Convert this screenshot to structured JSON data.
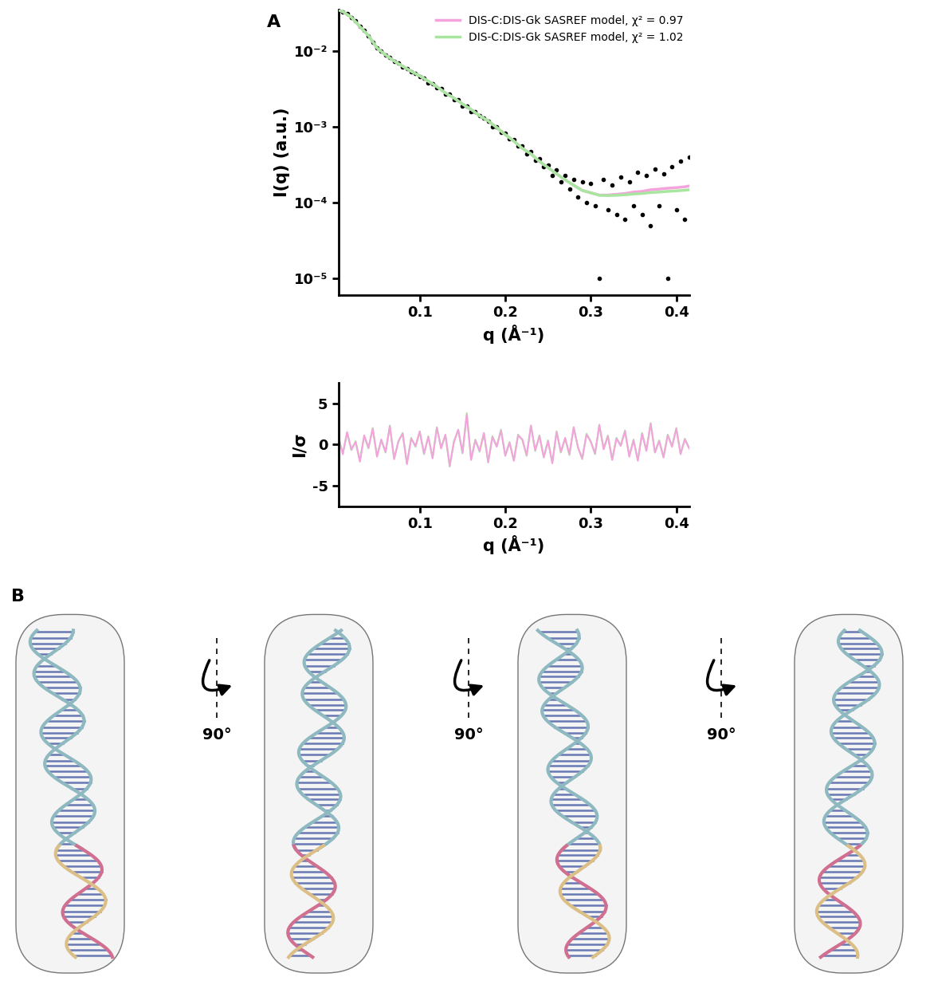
{
  "panel_labels": [
    "A",
    "B"
  ],
  "chart_data": [
    {
      "type": "scatter",
      "ylabel": "I(q) (a.u.)",
      "xlabel": "q (Å⁻¹)",
      "log": "y",
      "legend": "upper right",
      "xlim": [
        0.005,
        0.415
      ],
      "xticks": [
        0.1,
        0.2,
        0.3,
        0.4
      ],
      "ylim": [
        6e-06,
        0.035
      ],
      "yticks": [
        {
          "value": 1e-05,
          "label": "10⁻⁵"
        },
        {
          "value": 0.0001,
          "label": "10⁻⁴"
        },
        {
          "value": 0.001,
          "label": "10⁻³"
        },
        {
          "value": 0.01,
          "label": "10⁻²"
        }
      ],
      "series": [
        {
          "type": "scatter",
          "color": "#000000",
          "marker": "o",
          "x": [
            0.005,
            0.01,
            0.015,
            0.02,
            0.025,
            0.03,
            0.035,
            0.04,
            0.045,
            0.05,
            0.055,
            0.06,
            0.065,
            0.07,
            0.075,
            0.08,
            0.085,
            0.09,
            0.095,
            0.1,
            0.105,
            0.11,
            0.115,
            0.12,
            0.125,
            0.13,
            0.135,
            0.14,
            0.145,
            0.15,
            0.155,
            0.16,
            0.165,
            0.17,
            0.175,
            0.18,
            0.185,
            0.19,
            0.195,
            0.2,
            0.205,
            0.21,
            0.215,
            0.22,
            0.225,
            0.23,
            0.235,
            0.24,
            0.245,
            0.25,
            0.255,
            0.26,
            0.265,
            0.27,
            0.275,
            0.28,
            0.285,
            0.29,
            0.295,
            0.3,
            0.305,
            0.31,
            0.315,
            0.32,
            0.325,
            0.33,
            0.335,
            0.34,
            0.345,
            0.35,
            0.355,
            0.36,
            0.365,
            0.37,
            0.375,
            0.38,
            0.385,
            0.39,
            0.395,
            0.4,
            0.405,
            0.41,
            0.415
          ],
          "values": [
            0.034,
            0.033,
            0.031,
            0.028,
            0.025,
            0.021,
            0.019,
            0.016,
            0.013,
            0.011,
            0.01,
            0.0088,
            0.0083,
            0.0073,
            0.0069,
            0.0062,
            0.0059,
            0.0053,
            0.0051,
            0.0046,
            0.0044,
            0.0038,
            0.0037,
            0.0033,
            0.0032,
            0.0027,
            0.0027,
            0.0023,
            0.0023,
            0.0019,
            0.0019,
            0.0016,
            0.0016,
            0.0014,
            0.0013,
            0.0012,
            0.001,
            0.001,
            0.00084,
            0.00083,
            0.0007,
            0.00068,
            0.00056,
            0.00056,
            0.00044,
            0.00047,
            0.00036,
            0.00038,
            0.0003,
            0.00031,
            0.00023,
            0.00027,
            0.00019,
            0.00023,
            0.00015,
            0.0002,
            0.00012,
            0.00019,
            0.0001,
            0.00018,
            9e-05,
            1e-05,
            0.0002,
            8e-05,
            0.00017,
            7e-05,
            0.00022,
            6e-05,
            0.00019,
            9e-05,
            0.00025,
            7e-05,
            0.00023,
            5e-05,
            0.00028,
            9e-05,
            0.00024,
            1e-05,
            0.0003,
            8e-05,
            0.00035,
            6e-05,
            0.0004
          ]
        },
        {
          "type": "line",
          "name": "DIS-C:DIS-Gk SASREF model, χ² = 0.97",
          "color": "#f4a3dd",
          "x": [
            0.005,
            0.01,
            0.02,
            0.03,
            0.04,
            0.05,
            0.06,
            0.07,
            0.08,
            0.09,
            0.1,
            0.11,
            0.12,
            0.13,
            0.14,
            0.15,
            0.16,
            0.17,
            0.18,
            0.19,
            0.2,
            0.21,
            0.22,
            0.23,
            0.24,
            0.25,
            0.26,
            0.27,
            0.28,
            0.29,
            0.3,
            0.31,
            0.32,
            0.33,
            0.34,
            0.35,
            0.36,
            0.37,
            0.38,
            0.39,
            0.4,
            0.41,
            0.415
          ],
          "values": [
            0.035,
            0.033,
            0.028,
            0.021,
            0.016,
            0.011,
            0.0089,
            0.0074,
            0.0063,
            0.0054,
            0.0047,
            0.004,
            0.0034,
            0.0028,
            0.0024,
            0.002,
            0.0017,
            0.0014,
            0.0012,
            0.00098,
            0.00079,
            0.00065,
            0.00052,
            0.00044,
            0.00035,
            0.00029,
            0.00024,
            0.0002,
            0.00017,
            0.000145,
            0.000135,
            0.000126,
            0.000126,
            0.000129,
            0.000132,
            0.000138,
            0.000141,
            0.000148,
            0.000151,
            0.000155,
            0.000158,
            0.000162,
            0.000166
          ]
        },
        {
          "type": "line",
          "name": "DIS-C:DIS-Gk SASREF model, χ² = 1.02",
          "color": "#a8e6a0",
          "x": [
            0.005,
            0.01,
            0.02,
            0.03,
            0.04,
            0.05,
            0.06,
            0.07,
            0.08,
            0.09,
            0.1,
            0.11,
            0.12,
            0.13,
            0.14,
            0.15,
            0.16,
            0.17,
            0.18,
            0.19,
            0.2,
            0.21,
            0.22,
            0.23,
            0.24,
            0.25,
            0.26,
            0.27,
            0.28,
            0.29,
            0.3,
            0.31,
            0.32,
            0.33,
            0.34,
            0.35,
            0.36,
            0.37,
            0.38,
            0.39,
            0.4,
            0.41,
            0.415
          ],
          "values": [
            0.035,
            0.033,
            0.028,
            0.021,
            0.016,
            0.011,
            0.0089,
            0.0074,
            0.0063,
            0.0054,
            0.0047,
            0.004,
            0.0034,
            0.0028,
            0.0024,
            0.002,
            0.0017,
            0.0014,
            0.0012,
            0.00098,
            0.00079,
            0.00065,
            0.00052,
            0.00044,
            0.00035,
            0.00029,
            0.00024,
            0.0002,
            0.00017,
            0.000145,
            0.000135,
            0.000125,
            0.000124,
            0.000125,
            0.000127,
            0.00013,
            0.000132,
            0.000136,
            0.000138,
            0.000141,
            0.000143,
            0.000146,
            0.000148
          ]
        }
      ]
    },
    {
      "type": "line",
      "ylabel": "I/σ",
      "xlabel": "q (Å⁻¹)",
      "xlim": [
        0.005,
        0.415
      ],
      "xticks": [
        0.1,
        0.2,
        0.3,
        0.4
      ],
      "ylim": [
        -7.5,
        7.5
      ],
      "yticks": [
        -5,
        0,
        5
      ],
      "x": [
        0.005,
        0.01,
        0.015,
        0.02,
        0.025,
        0.03,
        0.035,
        0.04,
        0.045,
        0.05,
        0.055,
        0.06,
        0.065,
        0.07,
        0.075,
        0.08,
        0.085,
        0.09,
        0.095,
        0.1,
        0.105,
        0.11,
        0.115,
        0.12,
        0.125,
        0.13,
        0.135,
        0.14,
        0.145,
        0.15,
        0.155,
        0.16,
        0.165,
        0.17,
        0.175,
        0.18,
        0.185,
        0.19,
        0.195,
        0.2,
        0.205,
        0.21,
        0.215,
        0.22,
        0.225,
        0.23,
        0.235,
        0.24,
        0.245,
        0.25,
        0.255,
        0.26,
        0.265,
        0.27,
        0.275,
        0.28,
        0.285,
        0.29,
        0.295,
        0.3,
        0.305,
        0.31,
        0.315,
        0.32,
        0.325,
        0.33,
        0.335,
        0.34,
        0.345,
        0.35,
        0.355,
        0.36,
        0.365,
        0.37,
        0.375,
        0.38,
        0.385,
        0.39,
        0.395,
        0.4,
        0.405,
        0.41,
        0.415
      ],
      "series": [
        {
          "color": "#a8e6a0",
          "values": [
            0.9,
            -1.1,
            1.4,
            -0.7,
            0.4,
            -2.0,
            1.0,
            -0.5,
            2.0,
            -1.4,
            0.5,
            -1.0,
            2.3,
            -1.7,
            0.3,
            1.4,
            -2.3,
            0.8,
            -0.3,
            1.5,
            -1.2,
            1.0,
            -1.6,
            2.1,
            -0.4,
            1.1,
            -2.7,
            0.4,
            1.7,
            -1.1,
            3.8,
            -1.8,
            0.6,
            -0.9,
            1.3,
            -2.1,
            1.0,
            -0.2,
            1.8,
            -1.3,
            0.3,
            -1.9,
            1.2,
            0.5,
            -1.4,
            2.2,
            -0.8,
            1.1,
            -1.5,
            0.5,
            -2.2,
            1.6,
            -1.0,
            0.7,
            -1.3,
            2.0,
            -0.3,
            -1.8,
            1.3,
            0.4,
            -1.2,
            2.3,
            -0.5,
            1.1,
            -1.8,
            0.8,
            -0.1,
            1.7,
            -1.4,
            0.6,
            -1.9,
            1.4,
            -0.7,
            2.6,
            -0.9,
            0.5,
            -1.5,
            1.2,
            -0.2,
            2.0,
            -1.1,
            0.7,
            -0.4
          ]
        },
        {
          "color": "#f4a3dd",
          "values": [
            0.8,
            -1.2,
            1.5,
            -0.6,
            0.3,
            -2.1,
            1.1,
            -0.4,
            1.9,
            -1.5,
            0.6,
            -0.9,
            2.2,
            -1.8,
            0.4,
            1.3,
            -2.4,
            0.7,
            -0.2,
            1.6,
            -1.1,
            0.9,
            -1.7,
            2.0,
            -0.5,
            1.2,
            -2.6,
            0.3,
            1.8,
            -1.0,
            3.6,
            -1.9,
            0.5,
            -0.8,
            1.4,
            -2.2,
            0.9,
            -0.3,
            1.7,
            -1.4,
            0.2,
            -2.0,
            1.1,
            0.6,
            -1.3,
            2.3,
            -0.7,
            1.0,
            -1.6,
            0.4,
            -2.3,
            1.5,
            -0.9,
            0.8,
            -1.2,
            2.1,
            -0.4,
            -1.7,
            1.2,
            0.3,
            -1.1,
            2.4,
            -0.6,
            1.0,
            -1.9,
            0.7,
            -0.2,
            1.6,
            -1.5,
            0.5,
            -2.0,
            1.3,
            -0.8,
            2.5,
            -1.0,
            0.4,
            -1.6,
            1.1,
            -0.3,
            1.9,
            -1.2,
            0.6,
            -0.5
          ]
        }
      ]
    }
  ],
  "diagram": {
    "rotations": [
      {
        "label": "90°"
      },
      {
        "label": "90°"
      },
      {
        "label": "90°"
      }
    ]
  }
}
